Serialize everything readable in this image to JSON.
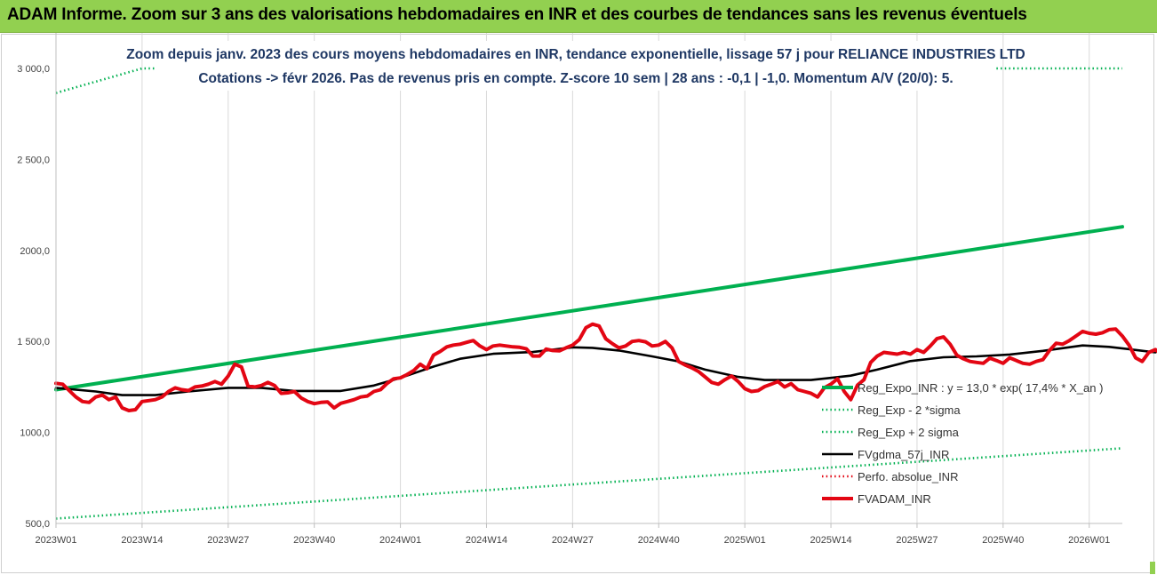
{
  "header": {
    "title": "ADAM Informe. Zoom sur 3 ans des valorisations hebdomadaires en INR et des courbes de tendances sans les revenus éventuels"
  },
  "colors": {
    "banner": "#92d050",
    "title_text": "#1f3864",
    "reg_expo": "#00b050",
    "sigma": "#00b050",
    "gdma": "#000000",
    "adam": "#e30613",
    "perfo": "#e30613",
    "grid": "#d9d9d9"
  },
  "chart_data": {
    "type": "line",
    "title": [
      "Zoom depuis janv. 2023 des cours moyens hebdomadaires en INR, tendance exponentielle, lissage 57 j pour RELIANCE INDUSTRIES LTD",
      "Cotations -> févr 2026.  Pas de revenus pris en compte. Z-score 10 sem | 28 ans : -0,1 | -1,0. Momentum A/V (20/0): 5."
    ],
    "ylim": [
      500,
      3000
    ],
    "y_ticks": [
      500,
      1000,
      1500,
      2000,
      2500,
      3000
    ],
    "y_tick_labels": [
      "500,0",
      "1000,0",
      "1 500,0",
      "2000,0",
      "2 500,0",
      "3 000,0"
    ],
    "x_week_range": [
      0,
      161
    ],
    "x_ticks": [
      {
        "label": "2023W01",
        "week": 0
      },
      {
        "label": "2023W14",
        "week": 13
      },
      {
        "label": "2023W27",
        "week": 26
      },
      {
        "label": "2023W40",
        "week": 39
      },
      {
        "label": "2024W01",
        "week": 52
      },
      {
        "label": "2024W14",
        "week": 65
      },
      {
        "label": "2024W27",
        "week": 78
      },
      {
        "label": "2024W40",
        "week": 91
      },
      {
        "label": "2025W01",
        "week": 104
      },
      {
        "label": "2025W14",
        "week": 117
      },
      {
        "label": "2025W27",
        "week": 130
      },
      {
        "label": "2025W40",
        "week": 143
      },
      {
        "label": "2026W01",
        "week": 156
      }
    ],
    "series": [
      {
        "name": "Reg_Expo_INR : y = 13,0 * exp( 17,4% *  X_an )",
        "style": "solid-thick",
        "key": "reg",
        "color": "#00b050",
        "points": [
          [
            0,
            1235
          ],
          [
            161,
            2130
          ]
        ]
      },
      {
        "name": "Reg_Exp - 2 *sigma",
        "style": "dotted",
        "key": "lower",
        "color": "#00b050",
        "points": [
          [
            0,
            527
          ],
          [
            161,
            913
          ]
        ]
      },
      {
        "name": "Reg_Exp + 2 sigma",
        "style": "dotted",
        "key": "upper",
        "color": "#00b050",
        "points": [
          [
            0,
            2865
          ],
          [
            13,
            3000
          ],
          [
            161,
            3000
          ]
        ]
      },
      {
        "name": "FVgdma_57j_INR",
        "style": "solid",
        "key": "gdma",
        "color": "#000000",
        "points": [
          [
            0,
            1245
          ],
          [
            6,
            1225
          ],
          [
            10,
            1205
          ],
          [
            15,
            1205
          ],
          [
            20,
            1225
          ],
          [
            26,
            1245
          ],
          [
            31,
            1245
          ],
          [
            36,
            1228
          ],
          [
            43,
            1228
          ],
          [
            48,
            1258
          ],
          [
            52,
            1300
          ],
          [
            57,
            1362
          ],
          [
            61,
            1405
          ],
          [
            66,
            1432
          ],
          [
            72,
            1442
          ],
          [
            78,
            1468
          ],
          [
            81,
            1465
          ],
          [
            85,
            1450
          ],
          [
            90,
            1418
          ],
          [
            94,
            1390
          ],
          [
            98,
            1345
          ],
          [
            103,
            1305
          ],
          [
            107,
            1288
          ],
          [
            114,
            1288
          ],
          [
            117,
            1300
          ],
          [
            120,
            1312
          ],
          [
            124,
            1345
          ],
          [
            129,
            1392
          ],
          [
            134,
            1413
          ],
          [
            139,
            1418
          ],
          [
            144,
            1428
          ],
          [
            149,
            1448
          ],
          [
            155,
            1478
          ],
          [
            159,
            1470
          ],
          [
            163,
            1453
          ],
          [
            166,
            1440
          ]
        ]
      },
      {
        "name": "Perfo. absolue_INR",
        "style": "dotted",
        "key": "perfo",
        "color": "#e30613",
        "points": []
      },
      {
        "name": "FVADAM_INR",
        "style": "solid-thick",
        "key": "adam",
        "color": "#e30613",
        "points": [
          [
            0,
            1270
          ],
          [
            1,
            1265
          ],
          [
            2,
            1230
          ],
          [
            3,
            1195
          ],
          [
            4,
            1170
          ],
          [
            5,
            1165
          ],
          [
            6,
            1195
          ],
          [
            7,
            1205
          ],
          [
            8,
            1180
          ],
          [
            9,
            1195
          ],
          [
            10,
            1135
          ],
          [
            11,
            1120
          ],
          [
            12,
            1125
          ],
          [
            13,
            1170
          ],
          [
            14,
            1175
          ],
          [
            15,
            1180
          ],
          [
            16,
            1195
          ],
          [
            17,
            1225
          ],
          [
            18,
            1245
          ],
          [
            19,
            1235
          ],
          [
            20,
            1230
          ],
          [
            21,
            1250
          ],
          [
            22,
            1255
          ],
          [
            23,
            1265
          ],
          [
            24,
            1280
          ],
          [
            25,
            1265
          ],
          [
            26,
            1310
          ],
          [
            27,
            1375
          ],
          [
            28,
            1360
          ],
          [
            29,
            1255
          ],
          [
            30,
            1250
          ],
          [
            31,
            1258
          ],
          [
            32,
            1275
          ],
          [
            33,
            1258
          ],
          [
            34,
            1215
          ],
          [
            35,
            1218
          ],
          [
            36,
            1225
          ],
          [
            37,
            1190
          ],
          [
            38,
            1170
          ],
          [
            39,
            1158
          ],
          [
            40,
            1165
          ],
          [
            41,
            1168
          ],
          [
            42,
            1135
          ],
          [
            43,
            1160
          ],
          [
            44,
            1170
          ],
          [
            45,
            1180
          ],
          [
            46,
            1195
          ],
          [
            47,
            1200
          ],
          [
            48,
            1225
          ],
          [
            49,
            1235
          ],
          [
            50,
            1270
          ],
          [
            51,
            1295
          ],
          [
            52,
            1300
          ],
          [
            53,
            1318
          ],
          [
            54,
            1340
          ],
          [
            55,
            1375
          ],
          [
            56,
            1350
          ],
          [
            57,
            1425
          ],
          [
            58,
            1445
          ],
          [
            59,
            1470
          ],
          [
            60,
            1480
          ],
          [
            61,
            1485
          ],
          [
            62,
            1495
          ],
          [
            63,
            1505
          ],
          [
            64,
            1475
          ],
          [
            65,
            1455
          ],
          [
            66,
            1475
          ],
          [
            67,
            1480
          ],
          [
            68,
            1475
          ],
          [
            69,
            1470
          ],
          [
            70,
            1468
          ],
          [
            71,
            1460
          ],
          [
            72,
            1420
          ],
          [
            73,
            1420
          ],
          [
            74,
            1458
          ],
          [
            75,
            1450
          ],
          [
            76,
            1448
          ],
          [
            77,
            1465
          ],
          [
            78,
            1480
          ],
          [
            79,
            1510
          ],
          [
            80,
            1575
          ],
          [
            81,
            1595
          ],
          [
            82,
            1585
          ],
          [
            83,
            1515
          ],
          [
            84,
            1488
          ],
          [
            85,
            1465
          ],
          [
            86,
            1475
          ],
          [
            87,
            1500
          ],
          [
            88,
            1505
          ],
          [
            89,
            1498
          ],
          [
            90,
            1475
          ],
          [
            91,
            1480
          ],
          [
            92,
            1500
          ],
          [
            93,
            1465
          ],
          [
            94,
            1390
          ],
          [
            95,
            1370
          ],
          [
            96,
            1355
          ],
          [
            97,
            1335
          ],
          [
            98,
            1305
          ],
          [
            99,
            1275
          ],
          [
            100,
            1265
          ],
          [
            101,
            1290
          ],
          [
            102,
            1310
          ],
          [
            103,
            1280
          ],
          [
            104,
            1240
          ],
          [
            105,
            1225
          ],
          [
            106,
            1230
          ],
          [
            107,
            1252
          ],
          [
            108,
            1265
          ],
          [
            109,
            1280
          ],
          [
            110,
            1250
          ],
          [
            111,
            1268
          ],
          [
            112,
            1235
          ],
          [
            113,
            1225
          ],
          [
            114,
            1215
          ],
          [
            115,
            1195
          ],
          [
            116,
            1245
          ],
          [
            117,
            1265
          ],
          [
            118,
            1295
          ],
          [
            119,
            1225
          ],
          [
            120,
            1180
          ],
          [
            121,
            1260
          ],
          [
            122,
            1290
          ],
          [
            123,
            1385
          ],
          [
            124,
            1420
          ],
          [
            125,
            1440
          ],
          [
            126,
            1435
          ],
          [
            127,
            1430
          ],
          [
            128,
            1440
          ],
          [
            129,
            1430
          ],
          [
            130,
            1455
          ],
          [
            131,
            1440
          ],
          [
            132,
            1475
          ],
          [
            133,
            1515
          ],
          [
            134,
            1525
          ],
          [
            135,
            1485
          ],
          [
            136,
            1425
          ],
          [
            137,
            1405
          ],
          [
            138,
            1390
          ],
          [
            139,
            1385
          ],
          [
            140,
            1380
          ],
          [
            141,
            1408
          ],
          [
            142,
            1395
          ],
          [
            143,
            1380
          ],
          [
            144,
            1410
          ],
          [
            145,
            1395
          ],
          [
            146,
            1380
          ],
          [
            147,
            1375
          ],
          [
            148,
            1390
          ],
          [
            149,
            1400
          ],
          [
            150,
            1450
          ],
          [
            151,
            1490
          ],
          [
            152,
            1485
          ],
          [
            153,
            1505
          ],
          [
            154,
            1530
          ],
          [
            155,
            1555
          ],
          [
            156,
            1545
          ],
          [
            157,
            1540
          ],
          [
            158,
            1548
          ],
          [
            159,
            1565
          ],
          [
            160,
            1568
          ],
          [
            161,
            1530
          ],
          [
            162,
            1480
          ],
          [
            163,
            1410
          ],
          [
            164,
            1390
          ],
          [
            165,
            1440
          ],
          [
            166,
            1455
          ],
          [
            167,
            1425
          ],
          [
            168,
            1415
          ]
        ]
      }
    ],
    "grid": "vertical",
    "legend_position": "right-lower"
  }
}
